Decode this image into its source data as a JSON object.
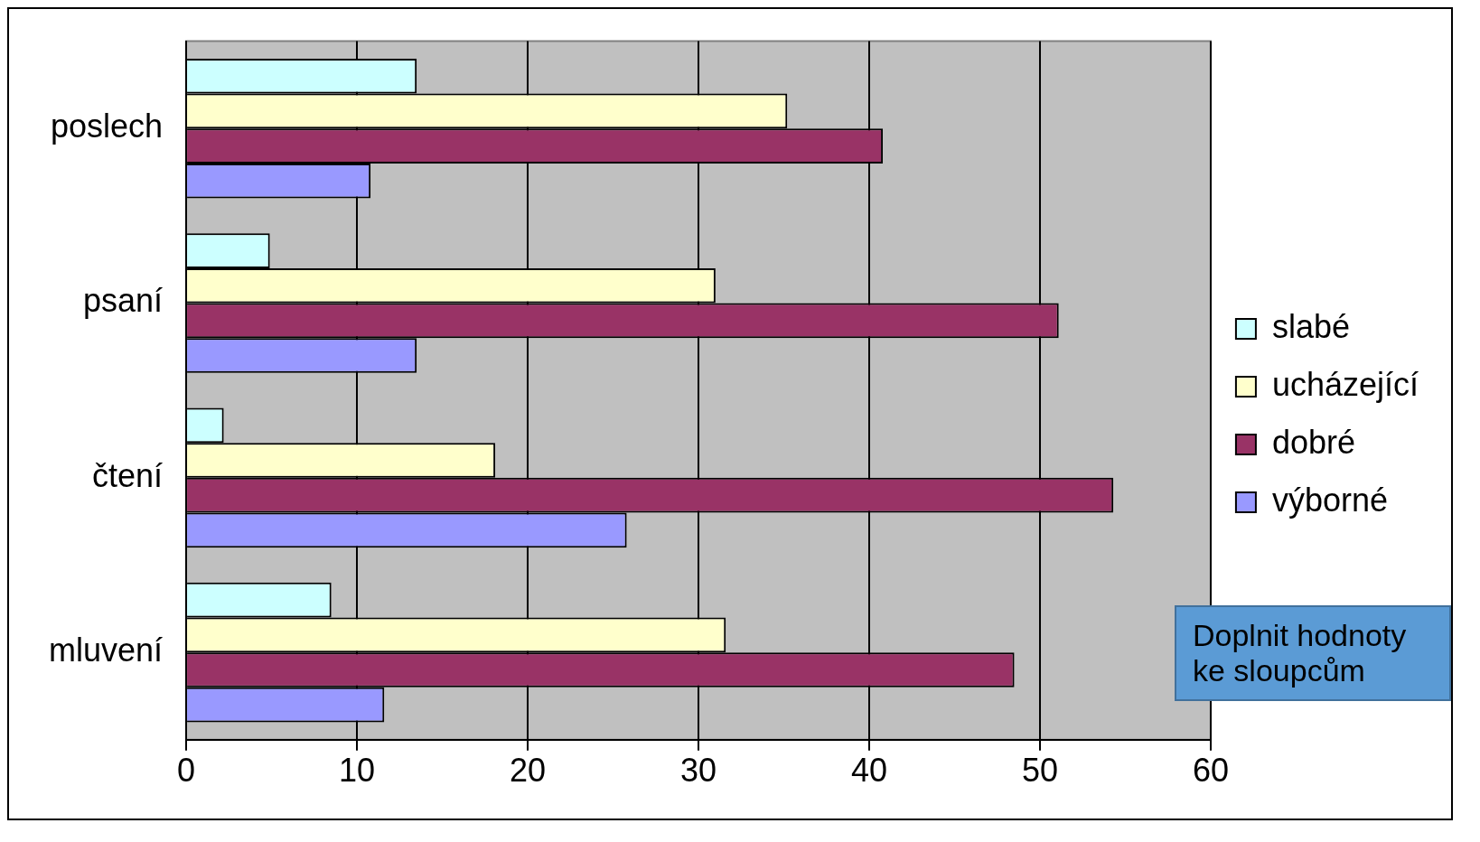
{
  "chart_data": {
    "type": "bar",
    "orientation": "horizontal",
    "categories": [
      "poslech",
      "psaní",
      "čtení",
      "mluvení"
    ],
    "series": [
      {
        "name": "slabé",
        "color": "#ccffff",
        "values": [
          13.5,
          4.9,
          2.2,
          8.5
        ]
      },
      {
        "name": "ucházející",
        "color": "#ffffcc",
        "values": [
          35.2,
          31.0,
          18.1,
          31.6
        ]
      },
      {
        "name": "dobré",
        "color": "#993366",
        "values": [
          40.8,
          51.1,
          54.3,
          48.5
        ]
      },
      {
        "name": "výborné",
        "color": "#9999ff",
        "values": [
          10.8,
          13.5,
          25.8,
          11.6
        ]
      }
    ],
    "xlim": [
      0,
      60
    ],
    "xticks": [
      0,
      10,
      20,
      30,
      40,
      50,
      60
    ],
    "grid": "x",
    "legend": "right",
    "annotations": [
      "Doplnit hodnoty ke sloupcům"
    ]
  }
}
